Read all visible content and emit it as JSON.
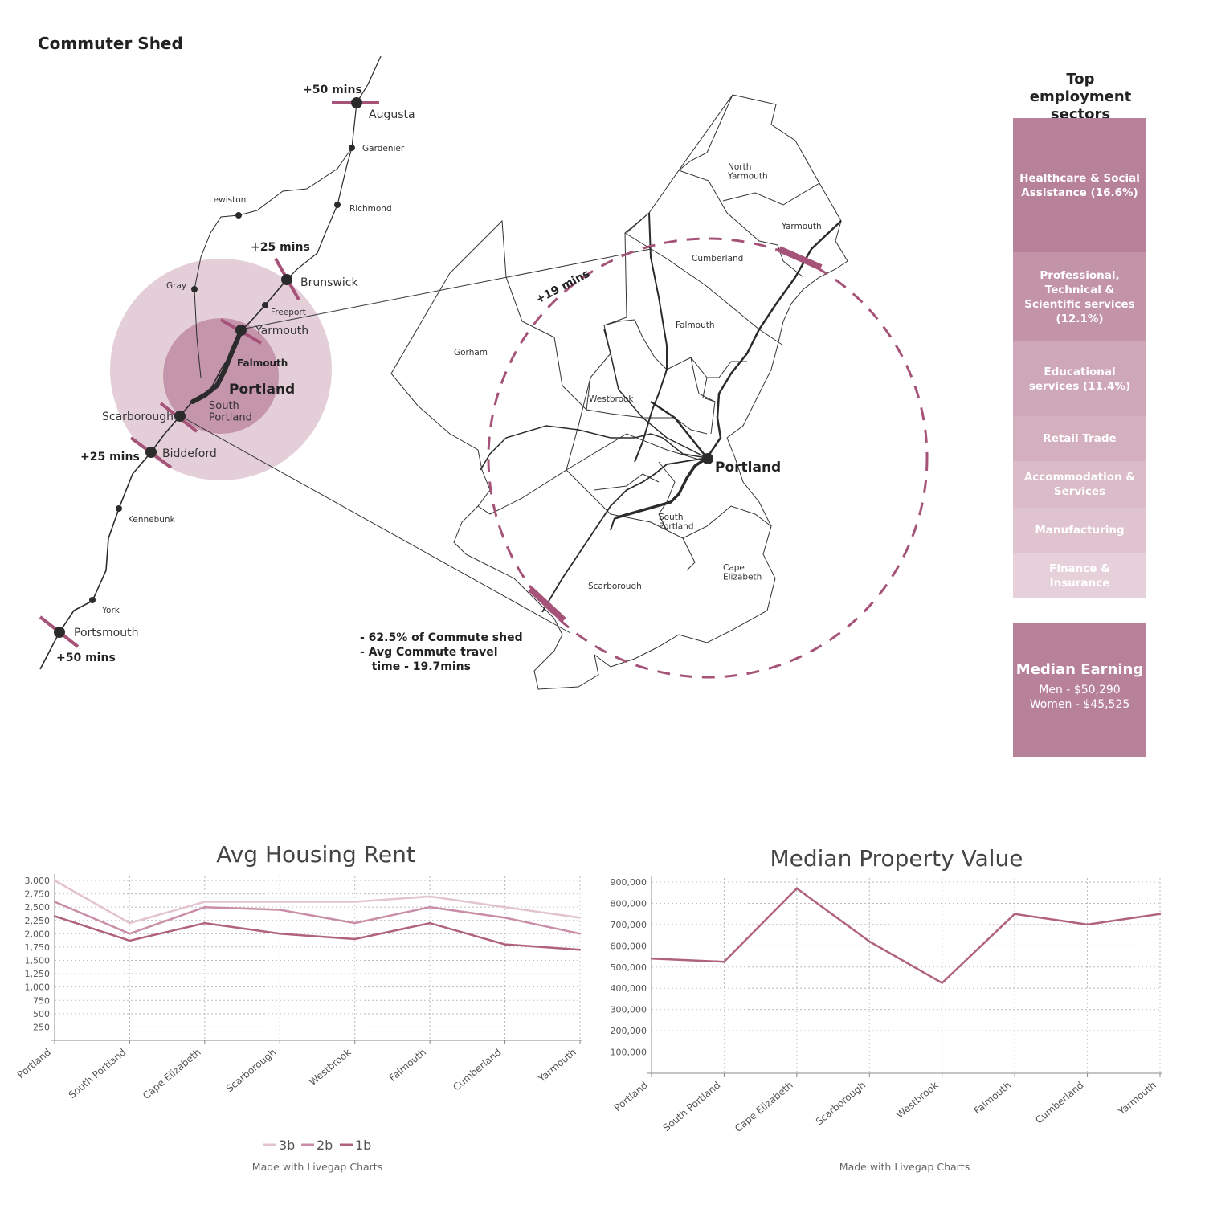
{
  "page_title": "Commuter Shed",
  "regional_map": {
    "cities": {
      "augusta": "Augusta",
      "gardiner": "Gardenier",
      "lewiston": "Lewiston",
      "richmond": "Richmond",
      "brunswick": "Brunswick",
      "gray": "Gray",
      "freeport": "Freeport",
      "yarmouth": "Yarmouth",
      "falmouth": "Falmouth",
      "portland": "Portland",
      "south_portland": "South\nPortland",
      "scarborough": "Scarborough",
      "biddeford": "Biddeford",
      "kennebunk": "Kennebunk",
      "york": "York",
      "portsmouth": "Portsmouth"
    },
    "time_labels": {
      "augusta": "+50 mins",
      "brunswick": "+25 mins",
      "biddeford": "+25 mins",
      "portsmouth": "+50 mins"
    }
  },
  "detail_map": {
    "towns": {
      "north_yarmouth": "North\nYarmouth",
      "yarmouth": "Yarmouth",
      "cumberland": "Cumberland",
      "falmouth": "Falmouth",
      "gorham": "Gorham",
      "westbrook": "Westbrook",
      "portland": "Portland",
      "south_portland": "South\nPortland",
      "cape_elizabeth": "Cape\nElizabeth",
      "scarborough": "Scarborough"
    },
    "radius_label": "+19 mins",
    "stats": [
      "-  62.5% of Commute shed",
      "-  Avg Commute travel",
      "   time - 19.7mins"
    ]
  },
  "sectors": {
    "title": "Top employment sectors",
    "items": [
      {
        "label": "Healthcare & Social Assistance (16.6%)",
        "color": "#b8819a"
      },
      {
        "label": "Professional, Technical & Scientific services (12.1%)",
        "color": "#c393a7"
      },
      {
        "label": "Educational services (11.4%)",
        "color": "#cea7b8"
      },
      {
        "label": "Retail Trade",
        "color": "#d4b0bf"
      },
      {
        "label": "Accommodation & Services",
        "color": "#dbbbc8"
      },
      {
        "label": "Manufacturing",
        "color": "#dfc4cf"
      },
      {
        "label": "Finance & Insurance",
        "color": "#e6d0d9"
      }
    ]
  },
  "earnings": {
    "title": "Median Earning",
    "men": "Men -  $50,290",
    "women": "Women - $45,525"
  },
  "chart_data": [
    {
      "type": "line",
      "title": "Avg Housing Rent",
      "categories": [
        "Portland",
        "South Portland",
        "Cape Elizabeth",
        "Scarborough",
        "Westbrook",
        "Falmouth",
        "Cumberland",
        "Yarmouth"
      ],
      "series": [
        {
          "name": "3b",
          "color": "#e3c3d1",
          "values": [
            3000,
            2200,
            2600,
            2600,
            2600,
            2700,
            2500,
            2300
          ]
        },
        {
          "name": "2b",
          "color": "#c98da7",
          "values": [
            2600,
            2000,
            2500,
            2450,
            2200,
            2500,
            2300,
            2000
          ]
        },
        {
          "name": "1b",
          "color": "#b0617f",
          "values": [
            2330,
            1870,
            2200,
            2000,
            1900,
            2200,
            1800,
            1700
          ]
        }
      ],
      "ylim": [
        0,
        3000
      ],
      "yticks": [
        "250",
        "500",
        "750",
        "1,000",
        "1,250",
        "1,500",
        "1,750",
        "2,000",
        "2,250",
        "2,500",
        "2,750",
        "3,000"
      ],
      "credit": "Made with Livegap Charts"
    },
    {
      "type": "line",
      "title": "Median Property Value",
      "categories": [
        "Portland",
        "South Portland",
        "Cape Elizabeth",
        "Scarborough",
        "Westbrook",
        "Falmouth",
        "Cumberland",
        "Yarmouth"
      ],
      "series": [
        {
          "name": "Median Property Value",
          "color": "#b0617f",
          "values": [
            540000,
            525000,
            870000,
            620000,
            425000,
            750000,
            700000,
            750000
          ]
        }
      ],
      "ylim": [
        0,
        900000
      ],
      "yticks": [
        "100,000",
        "200,000",
        "300,000",
        "400,000",
        "500,000",
        "600,000",
        "700,000",
        "800,000",
        "900,000"
      ],
      "credit": "Made with Livegap Charts"
    }
  ]
}
